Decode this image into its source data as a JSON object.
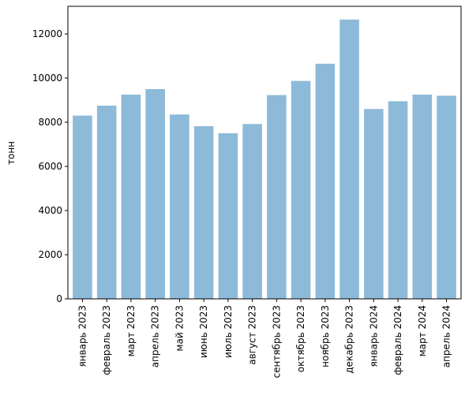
{
  "chart_data": {
    "type": "bar",
    "title": "",
    "xlabel": "",
    "ylabel": "тонн",
    "categories": [
      "январь 2023",
      "февраль 2023",
      "март 2023",
      "апрель 2023",
      "май 2023",
      "июнь 2023",
      "июль 2023",
      "август 2023",
      "сентябрь 2023",
      "октябрь 2023",
      "ноябрь 2023",
      "декабрь 2023",
      "январь 2024",
      "февраль 2024",
      "март 2024",
      "апрель 2024"
    ],
    "values": [
      8300,
      8750,
      9250,
      9500,
      8350,
      7820,
      7500,
      7920,
      9230,
      9870,
      10650,
      12650,
      8600,
      8950,
      9250,
      9200
    ],
    "ylim": [
      0,
      13250
    ],
    "yticks": [
      0,
      2000,
      4000,
      6000,
      8000,
      10000,
      12000
    ],
    "bar_color": "#8ebad9",
    "grid": false,
    "legend": "none"
  }
}
